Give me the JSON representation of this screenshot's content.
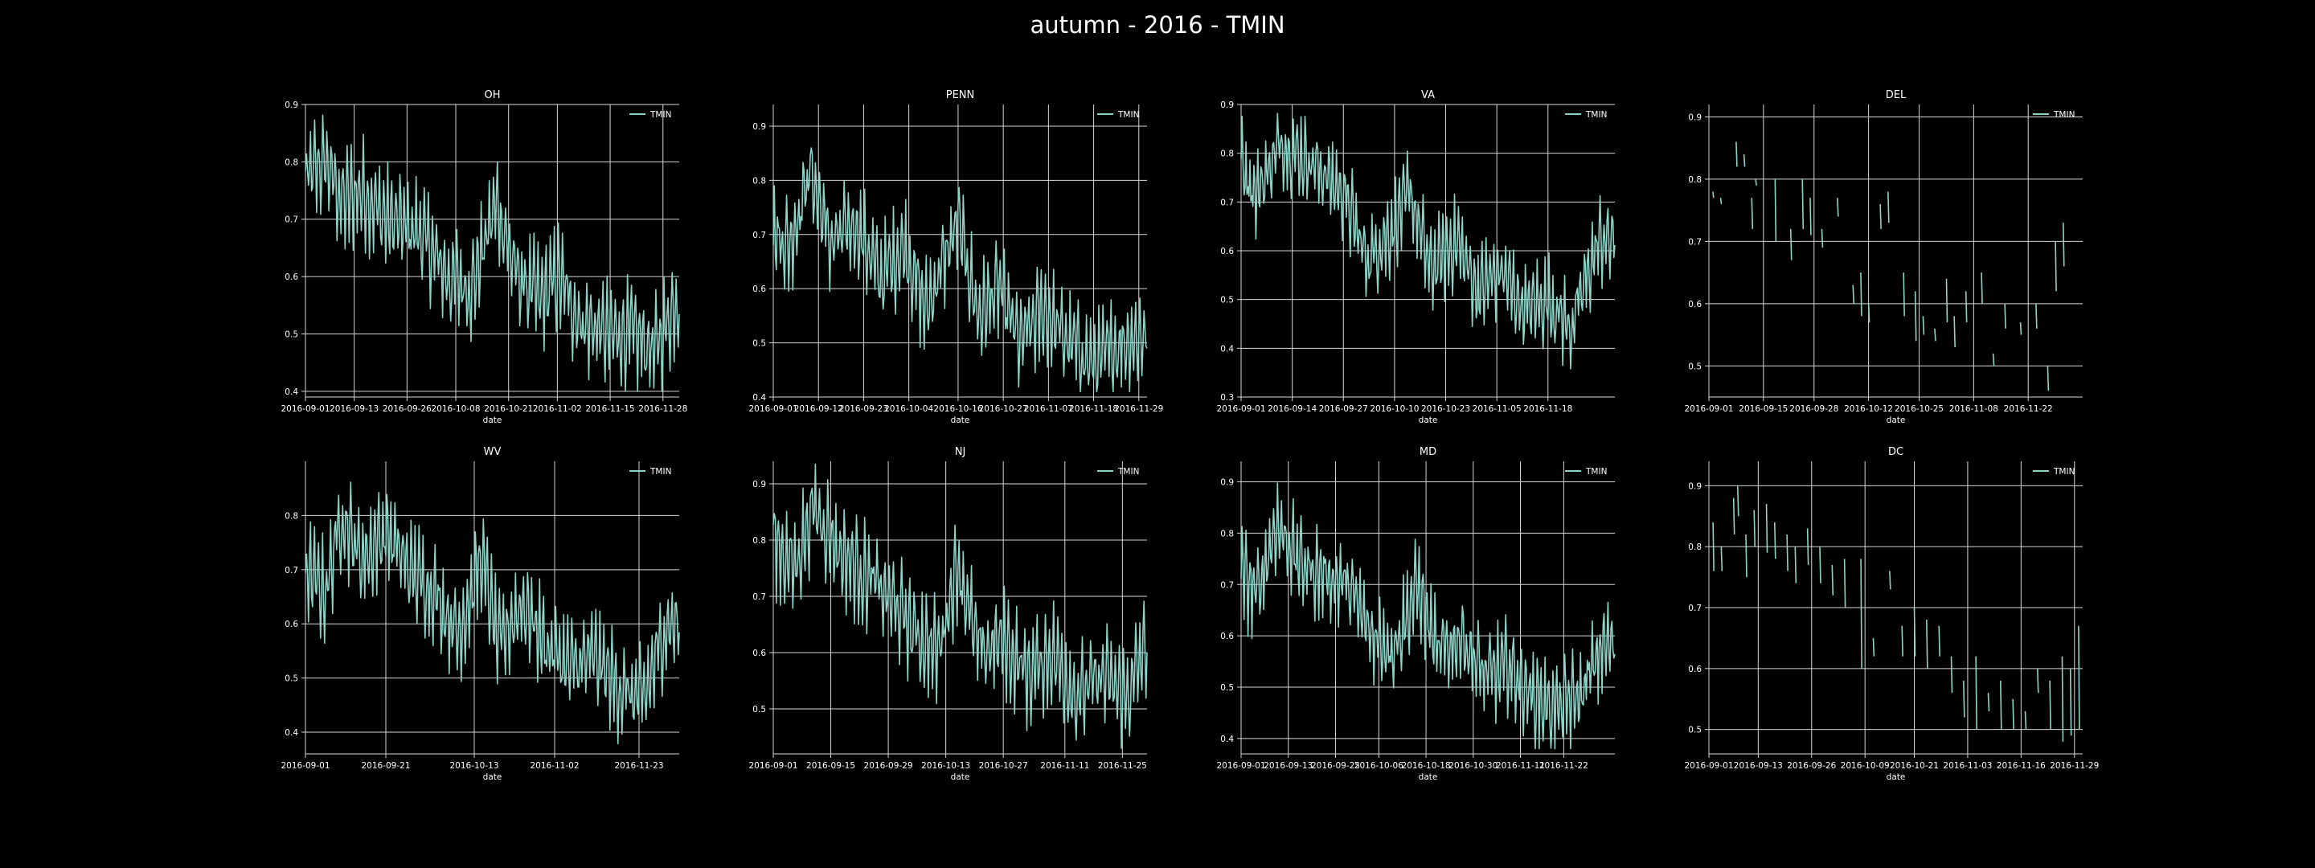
{
  "title": "autumn - 2016 - TMIN",
  "colors": {
    "background": "#000000",
    "series": "#8dd3c7",
    "grid": "#d8d8d8",
    "text": "#ffffff"
  },
  "chart_data": [
    {
      "type": "line",
      "title": "OH",
      "xlabel": "date",
      "ylabel": "",
      "legend": "top-right",
      "grid": true,
      "series": [
        {
          "name": "TMIN"
        }
      ],
      "xlim": [
        "2016-09-01",
        "2016-12-02"
      ],
      "xticks": [
        "2016-09-01",
        "2016-09-13",
        "2016-09-26",
        "2016-10-08",
        "2016-10-21",
        "2016-11-02",
        "2016-11-15",
        "2016-11-28"
      ],
      "ylim": [
        0.39,
        0.9
      ],
      "yticks": [
        0.4,
        0.5,
        0.6,
        0.7,
        0.8,
        0.9
      ],
      "trend": [
        [
          0,
          0.77
        ],
        [
          5,
          0.8
        ],
        [
          9,
          0.73
        ],
        [
          14,
          0.75
        ],
        [
          20,
          0.7
        ],
        [
          28,
          0.68
        ],
        [
          35,
          0.6
        ],
        [
          41,
          0.58
        ],
        [
          47,
          0.73
        ],
        [
          52,
          0.6
        ],
        [
          58,
          0.56
        ],
        [
          62,
          0.6
        ],
        [
          68,
          0.52
        ],
        [
          75,
          0.5
        ],
        [
          80,
          0.5
        ],
        [
          86,
          0.47
        ],
        [
          92,
          0.57
        ]
      ],
      "segments": []
    },
    {
      "type": "line",
      "title": "PENN",
      "xlabel": "date",
      "ylabel": "",
      "legend": "top-right",
      "grid": true,
      "series": [
        {
          "name": "TMIN"
        }
      ],
      "xlim": [
        "2016-09-01",
        "2016-12-01"
      ],
      "xticks": [
        "2016-09-01",
        "2016-09-12",
        "2016-09-23",
        "2016-10-04",
        "2016-10-16",
        "2016-10-27",
        "2016-11-07",
        "2016-11-18",
        "2016-11-29"
      ],
      "ylim": [
        0.4,
        0.94
      ],
      "yticks": [
        0.4,
        0.5,
        0.6,
        0.7,
        0.8,
        0.9
      ],
      "trend": [
        [
          0,
          0.7
        ],
        [
          4,
          0.68
        ],
        [
          9,
          0.82
        ],
        [
          14,
          0.68
        ],
        [
          20,
          0.72
        ],
        [
          26,
          0.62
        ],
        [
          32,
          0.68
        ],
        [
          37,
          0.56
        ],
        [
          45,
          0.72
        ],
        [
          50,
          0.55
        ],
        [
          55,
          0.6
        ],
        [
          60,
          0.5
        ],
        [
          66,
          0.56
        ],
        [
          72,
          0.5
        ],
        [
          78,
          0.46
        ],
        [
          85,
          0.5
        ],
        [
          91,
          0.52
        ]
      ],
      "segments": []
    },
    {
      "type": "line",
      "title": "VA",
      "xlabel": "date",
      "ylabel": "",
      "legend": "top-right",
      "grid": true,
      "series": [
        {
          "name": "TMIN"
        }
      ],
      "xlim": [
        "2016-09-01",
        "2016-12-05"
      ],
      "xticks": [
        "2016-09-01",
        "2016-09-14",
        "2016-09-27",
        "2016-10-10",
        "2016-10-23",
        "2016-11-05",
        "2016-11-18"
      ],
      "ylim": [
        0.3,
        0.9
      ],
      "yticks": [
        0.3,
        0.4,
        0.5,
        0.6,
        0.7,
        0.8,
        0.9
      ],
      "trend": [
        [
          0,
          0.78
        ],
        [
          4,
          0.72
        ],
        [
          10,
          0.82
        ],
        [
          18,
          0.78
        ],
        [
          26,
          0.72
        ],
        [
          32,
          0.58
        ],
        [
          38,
          0.64
        ],
        [
          43,
          0.72
        ],
        [
          48,
          0.56
        ],
        [
          55,
          0.62
        ],
        [
          60,
          0.52
        ],
        [
          66,
          0.56
        ],
        [
          72,
          0.48
        ],
        [
          78,
          0.5
        ],
        [
          84,
          0.44
        ],
        [
          88,
          0.55
        ],
        [
          91,
          0.62
        ]
      ],
      "segments": []
    },
    {
      "type": "line",
      "title": "DEL",
      "xlabel": "date",
      "ylabel": "",
      "legend": "top-right",
      "grid": true,
      "series": [
        {
          "name": "TMIN"
        }
      ],
      "xlim": [
        "2016-09-01",
        "2016-12-06"
      ],
      "xticks": [
        "2016-09-01",
        "2016-09-15",
        "2016-09-28",
        "2016-10-12",
        "2016-10-25",
        "2016-11-08",
        "2016-11-22"
      ],
      "ylim": [
        0.45,
        0.92
      ],
      "yticks": [
        0.5,
        0.6,
        0.7,
        0.8,
        0.9
      ],
      "trend": [],
      "segments": [
        [
          1,
          0.78,
          0.77
        ],
        [
          3,
          0.77,
          0.76
        ],
        [
          7,
          0.86,
          0.82
        ],
        [
          9,
          0.84,
          0.82
        ],
        [
          11,
          0.77,
          0.72
        ],
        [
          12,
          0.8,
          0.79
        ],
        [
          17,
          0.8,
          0.7
        ],
        [
          21,
          0.72,
          0.67
        ],
        [
          24,
          0.8,
          0.72
        ],
        [
          26,
          0.77,
          0.71
        ],
        [
          29,
          0.72,
          0.69
        ],
        [
          33,
          0.77,
          0.74
        ],
        [
          37,
          0.63,
          0.6
        ],
        [
          39,
          0.65,
          0.58
        ],
        [
          41,
          0.6,
          0.57
        ],
        [
          44,
          0.76,
          0.72
        ],
        [
          46,
          0.78,
          0.73
        ],
        [
          50,
          0.65,
          0.58
        ],
        [
          53,
          0.62,
          0.54
        ],
        [
          55,
          0.58,
          0.55
        ],
        [
          58,
          0.56,
          0.54
        ],
        [
          61,
          0.64,
          0.57
        ],
        [
          63,
          0.58,
          0.53
        ],
        [
          66,
          0.62,
          0.57
        ],
        [
          70,
          0.65,
          0.6
        ],
        [
          73,
          0.52,
          0.5
        ],
        [
          76,
          0.6,
          0.56
        ],
        [
          80,
          0.57,
          0.55
        ],
        [
          84,
          0.6,
          0.56
        ],
        [
          87,
          0.5,
          0.46
        ],
        [
          89,
          0.7,
          0.62
        ],
        [
          91,
          0.73,
          0.66
        ]
      ]
    },
    {
      "type": "line",
      "title": "WV",
      "xlabel": "date",
      "ylabel": "",
      "legend": "top-right",
      "grid": true,
      "series": [
        {
          "name": "TMIN"
        }
      ],
      "xlim": [
        "2016-09-01",
        "2016-12-03"
      ],
      "xticks": [
        "2016-09-01",
        "2016-09-21",
        "2016-10-13",
        "2016-11-02",
        "2016-11-23"
      ],
      "ylim": [
        0.36,
        0.9
      ],
      "yticks": [
        0.4,
        0.5,
        0.6,
        0.7,
        0.8
      ],
      "trend": [
        [
          0,
          0.7
        ],
        [
          5,
          0.66
        ],
        [
          9,
          0.8
        ],
        [
          14,
          0.72
        ],
        [
          20,
          0.77
        ],
        [
          26,
          0.7
        ],
        [
          32,
          0.66
        ],
        [
          38,
          0.58
        ],
        [
          44,
          0.72
        ],
        [
          48,
          0.56
        ],
        [
          54,
          0.64
        ],
        [
          60,
          0.56
        ],
        [
          66,
          0.52
        ],
        [
          72,
          0.54
        ],
        [
          78,
          0.48
        ],
        [
          84,
          0.46
        ],
        [
          90,
          0.6
        ]
      ],
      "segments": []
    },
    {
      "type": "line",
      "title": "NJ",
      "xlabel": "date",
      "ylabel": "",
      "legend": "top-right",
      "grid": true,
      "series": [
        {
          "name": "TMIN"
        }
      ],
      "xlim": [
        "2016-09-01",
        "2016-12-01"
      ],
      "xticks": [
        "2016-09-01",
        "2016-09-15",
        "2016-09-29",
        "2016-10-13",
        "2016-10-27",
        "2016-11-11",
        "2016-11-25"
      ],
      "ylim": [
        0.42,
        0.94
      ],
      "yticks": [
        0.5,
        0.6,
        0.7,
        0.8,
        0.9
      ],
      "trend": [
        [
          0,
          0.8
        ],
        [
          5,
          0.75
        ],
        [
          10,
          0.86
        ],
        [
          16,
          0.78
        ],
        [
          22,
          0.74
        ],
        [
          28,
          0.7
        ],
        [
          34,
          0.64
        ],
        [
          40,
          0.6
        ],
        [
          45,
          0.76
        ],
        [
          50,
          0.6
        ],
        [
          56,
          0.62
        ],
        [
          62,
          0.56
        ],
        [
          68,
          0.6
        ],
        [
          74,
          0.52
        ],
        [
          80,
          0.56
        ],
        [
          86,
          0.52
        ],
        [
          91,
          0.62
        ]
      ],
      "segments": []
    },
    {
      "type": "line",
      "title": "MD",
      "xlabel": "date",
      "ylabel": "",
      "legend": "top-right",
      "grid": true,
      "series": [
        {
          "name": "TMIN"
        }
      ],
      "xlim": [
        "2016-09-01",
        "2016-12-05"
      ],
      "xticks": [
        "2016-09-01",
        "2016-09-13",
        "2016-09-25",
        "2016-10-06",
        "2016-10-18",
        "2016-10-30",
        "2016-11-11",
        "2016-11-22"
      ],
      "ylim": [
        0.37,
        0.94
      ],
      "yticks": [
        0.4,
        0.5,
        0.6,
        0.7,
        0.8,
        0.9
      ],
      "trend": [
        [
          0,
          0.72
        ],
        [
          4,
          0.68
        ],
        [
          9,
          0.82
        ],
        [
          15,
          0.74
        ],
        [
          21,
          0.72
        ],
        [
          27,
          0.7
        ],
        [
          33,
          0.6
        ],
        [
          39,
          0.58
        ],
        [
          45,
          0.7
        ],
        [
          50,
          0.56
        ],
        [
          56,
          0.6
        ],
        [
          62,
          0.52
        ],
        [
          68,
          0.54
        ],
        [
          74,
          0.48
        ],
        [
          80,
          0.46
        ],
        [
          86,
          0.48
        ],
        [
          92,
          0.58
        ]
      ],
      "segments": []
    },
    {
      "type": "line",
      "title": "DC",
      "xlabel": "date",
      "ylabel": "",
      "legend": "top-right",
      "grid": true,
      "series": [
        {
          "name": "TMIN"
        }
      ],
      "xlim": [
        "2016-09-01",
        "2016-12-01"
      ],
      "xticks": [
        "2016-09-01",
        "2016-09-13",
        "2016-09-26",
        "2016-10-09",
        "2016-10-21",
        "2016-11-03",
        "2016-11-16",
        "2016-11-29"
      ],
      "ylim": [
        0.46,
        0.94
      ],
      "yticks": [
        0.5,
        0.6,
        0.7,
        0.8,
        0.9
      ],
      "trend": [],
      "segments": [
        [
          1,
          0.84,
          0.76
        ],
        [
          3,
          0.8,
          0.76
        ],
        [
          6,
          0.88,
          0.82
        ],
        [
          7,
          0.9,
          0.85
        ],
        [
          9,
          0.82,
          0.75
        ],
        [
          11,
          0.86,
          0.8
        ],
        [
          14,
          0.87,
          0.79
        ],
        [
          16,
          0.84,
          0.78
        ],
        [
          19,
          0.82,
          0.76
        ],
        [
          21,
          0.8,
          0.74
        ],
        [
          24,
          0.83,
          0.77
        ],
        [
          27,
          0.8,
          0.74
        ],
        [
          30,
          0.77,
          0.72
        ],
        [
          33,
          0.78,
          0.7
        ],
        [
          37,
          0.78,
          0.6
        ],
        [
          40,
          0.65,
          0.62
        ],
        [
          44,
          0.76,
          0.73
        ],
        [
          47,
          0.67,
          0.62
        ],
        [
          50,
          0.7,
          0.62
        ],
        [
          53,
          0.68,
          0.6
        ],
        [
          56,
          0.67,
          0.62
        ],
        [
          59,
          0.62,
          0.56
        ],
        [
          62,
          0.58,
          0.52
        ],
        [
          65,
          0.62,
          0.5
        ],
        [
          68,
          0.56,
          0.53
        ],
        [
          71,
          0.58,
          0.5
        ],
        [
          74,
          0.55,
          0.5
        ],
        [
          77,
          0.53,
          0.5
        ],
        [
          80,
          0.6,
          0.56
        ],
        [
          83,
          0.58,
          0.5
        ],
        [
          86,
          0.62,
          0.48
        ],
        [
          88,
          0.6,
          0.49
        ],
        [
          90,
          0.67,
          0.5
        ]
      ]
    }
  ]
}
